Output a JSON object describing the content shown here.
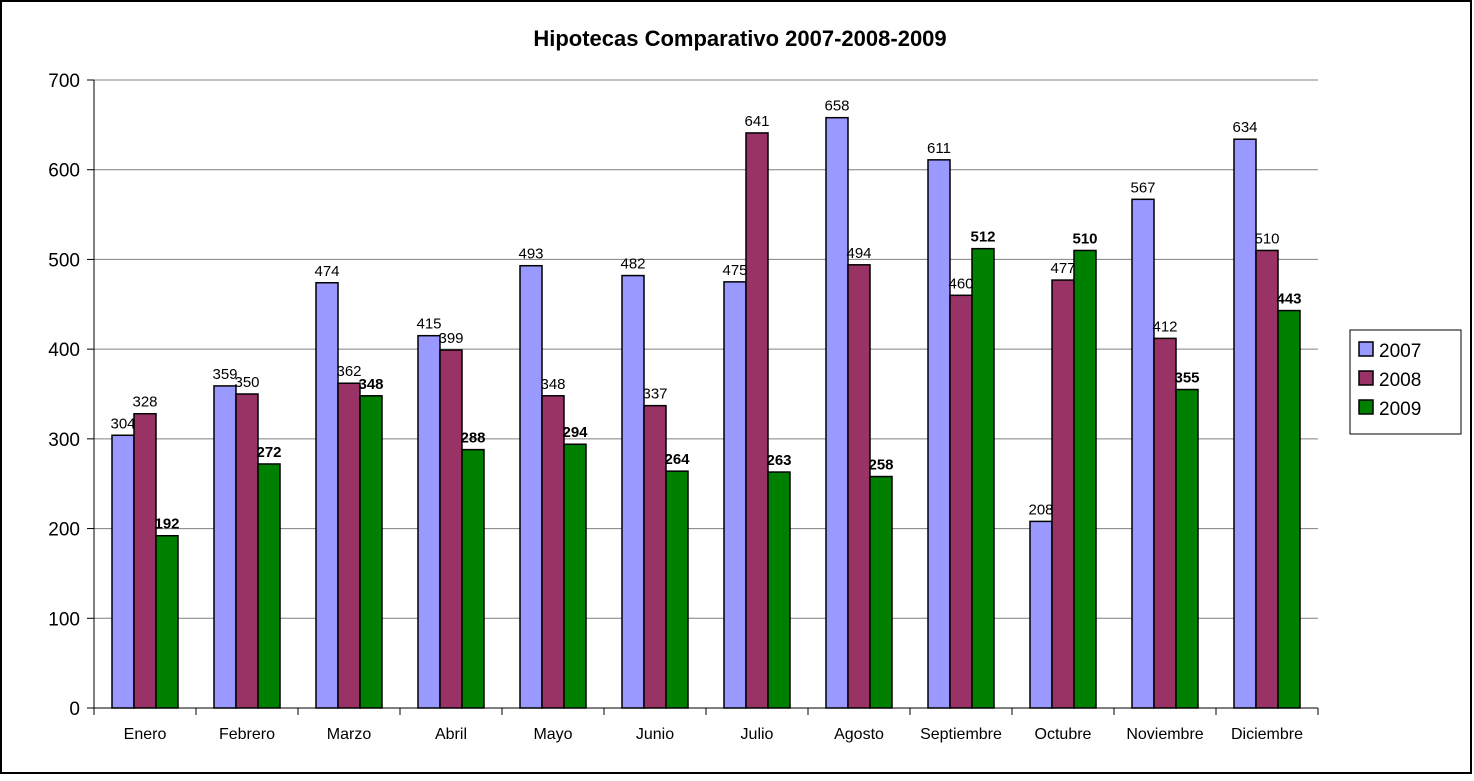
{
  "chart_data": {
    "type": "bar",
    "title": "Hipotecas Comparativo 2007-2008-2009",
    "xlabel": "",
    "ylabel": "",
    "ylim": [
      0,
      700
    ],
    "yticks": [
      0,
      100,
      200,
      300,
      400,
      500,
      600,
      700
    ],
    "grid": true,
    "legend_position": "right",
    "categories": [
      "Enero",
      "Febrero",
      "Marzo",
      "Abril",
      "Mayo",
      "Junio",
      "Julio",
      "Agosto",
      "Septiembre",
      "Octubre",
      "Noviembre",
      "Diciembre"
    ],
    "series": [
      {
        "name": "2007",
        "color": "#9999ff",
        "label_bold": false,
        "values": [
          304,
          359,
          474,
          415,
          493,
          482,
          475,
          658,
          611,
          208,
          567,
          634
        ]
      },
      {
        "name": "2008",
        "color": "#993366",
        "label_bold": false,
        "values": [
          328,
          350,
          362,
          399,
          348,
          337,
          641,
          494,
          460,
          477,
          412,
          510
        ]
      },
      {
        "name": "2009",
        "color": "#008000",
        "label_bold": true,
        "values": [
          192,
          272,
          348,
          288,
          294,
          264,
          263,
          258,
          512,
          510,
          355,
          443
        ]
      }
    ]
  }
}
